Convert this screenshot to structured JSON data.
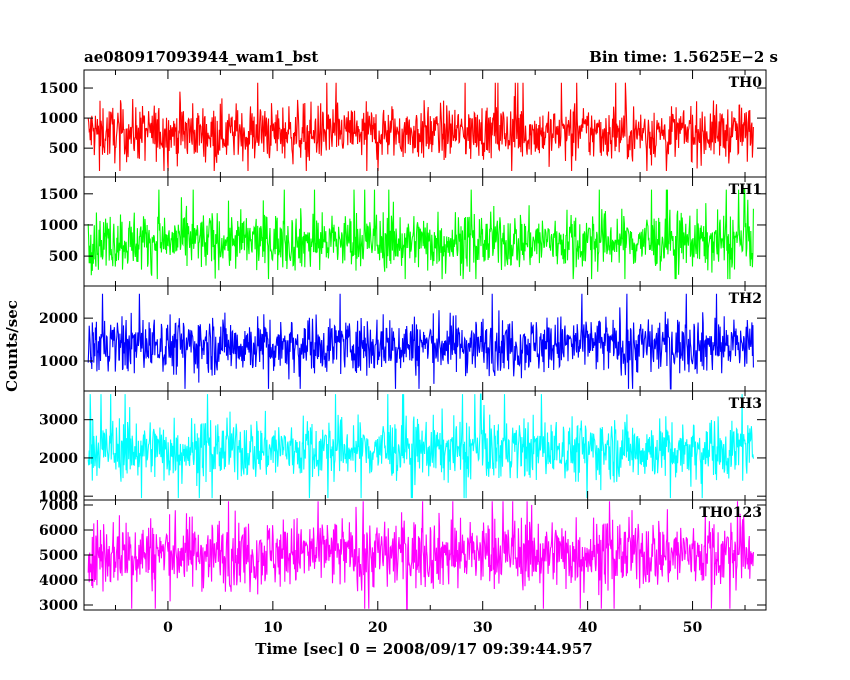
{
  "chart_data": {
    "type": "line",
    "title": "ae080917093944_wam1_bst",
    "subtitle": "Bin time: 1.5625E−2 s",
    "xlabel": "Time [sec] 0 = 2008/09/17 09:39:44.957",
    "ylabel": "Counts/sec",
    "xlim": [
      -8,
      57
    ],
    "x_ticks": [
      0,
      10,
      20,
      30,
      40,
      50
    ],
    "x_data_range": [
      -7.6,
      55.8
    ],
    "grid": false,
    "panels": [
      {
        "name": "TH0",
        "color": "#ff0000",
        "ylim": [
          20,
          1800
        ],
        "y_ticks": [
          500,
          1000,
          1500
        ],
        "mean": 760,
        "spread": 230,
        "max": 1790,
        "min": 120
      },
      {
        "name": "TH1",
        "color": "#00ff00",
        "ylim": [
          20,
          1770
        ],
        "y_ticks": [
          500,
          1000,
          1500
        ],
        "mean": 740,
        "spread": 230,
        "max": 1760,
        "min": 130
      },
      {
        "name": "TH2",
        "color": "#0000ff",
        "ylim": [
          300,
          2750
        ],
        "y_ticks": [
          1000,
          2000
        ],
        "mean": 1380,
        "spread": 330,
        "max": 2730,
        "min": 350
      },
      {
        "name": "TH3",
        "color": "#00ffff",
        "ylim": [
          900,
          3750
        ],
        "y_ticks": [
          1000,
          2000,
          3000
        ],
        "mean": 2230,
        "spread": 400,
        "max": 3700,
        "min": 950
      },
      {
        "name": "TH0123",
        "color": "#ff00ff",
        "ylim": [
          2800,
          7200
        ],
        "y_ticks": [
          3000,
          4000,
          5000,
          6000,
          7000
        ],
        "mean": 5080,
        "spread": 700,
        "max": 7150,
        "min": 2850
      }
    ]
  }
}
